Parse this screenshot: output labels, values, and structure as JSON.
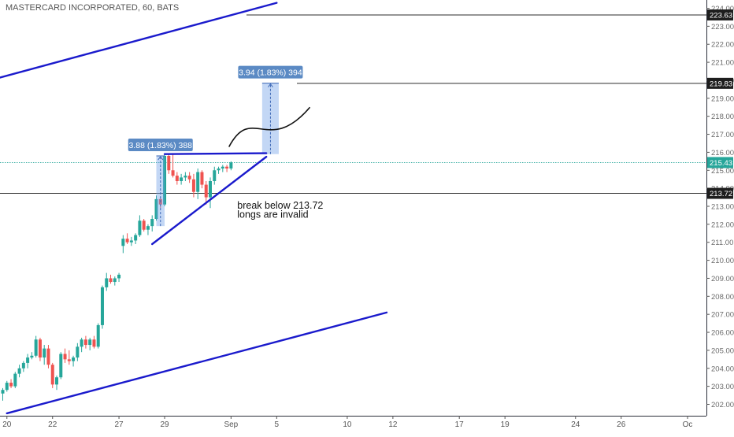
{
  "header": {
    "title": "MASTERCARD INCORPORATED, 60, BATS"
  },
  "chart_data": {
    "type": "candlestick",
    "symbol": "MASTERCARD INCORPORATED",
    "interval": "60",
    "exchange": "BATS",
    "y_axis": {
      "range": [
        201.6,
        224.3
      ],
      "ticks": [
        202,
        203,
        204,
        205,
        206,
        207,
        208,
        209,
        210,
        211,
        212,
        213,
        214,
        215,
        216,
        217,
        218,
        219,
        220,
        221,
        222,
        223,
        224
      ],
      "tick_labels": [
        "202.00",
        "203.00",
        "204.00",
        "205.00",
        "206.00",
        "207.00",
        "208.00",
        "209.00",
        "210.00",
        "211.00",
        "212.00",
        "213.00",
        "214.00",
        "215.00",
        "216.00",
        "217.00",
        "218.00",
        "219.00",
        "220.00",
        "221.00",
        "222.00",
        "223.00",
        "224.00"
      ]
    },
    "x_axis": {
      "ticks": [
        {
          "label": "20",
          "i": 1
        },
        {
          "label": "22",
          "i": 12
        },
        {
          "label": "27",
          "i": 28
        },
        {
          "label": "29",
          "i": 39
        },
        {
          "label": "Sep",
          "i": 55
        },
        {
          "label": "5",
          "i": 66
        },
        {
          "label": "10",
          "i": 83
        },
        {
          "label": "12",
          "i": 94
        },
        {
          "label": "17",
          "i": 110
        },
        {
          "label": "19",
          "i": 121
        },
        {
          "label": "24",
          "i": 138
        },
        {
          "label": "26",
          "i": 149
        },
        {
          "label": "Oc",
          "i": 165
        }
      ]
    },
    "colors": {
      "up": "#26a69a",
      "down": "#ef5350",
      "trendline": "#1a1acc",
      "price_tag": "#26a69a",
      "measure": "#5b8ac4"
    },
    "candles": [
      [
        202.6,
        202.9,
        202.2,
        202.8
      ],
      [
        202.8,
        203.3,
        202.7,
        203.2
      ],
      [
        203.2,
        203.4,
        202.9,
        203.0
      ],
      [
        203.0,
        203.8,
        202.9,
        203.7
      ],
      [
        203.7,
        204.2,
        203.5,
        204.0
      ],
      [
        204.0,
        204.4,
        203.8,
        204.3
      ],
      [
        204.3,
        204.8,
        204.0,
        204.6
      ],
      [
        204.6,
        204.9,
        204.5,
        204.7
      ],
      [
        204.7,
        205.8,
        204.6,
        205.6
      ],
      [
        205.6,
        205.7,
        204.4,
        204.6
      ],
      [
        204.6,
        205.3,
        204.2,
        205.1
      ],
      [
        205.1,
        205.3,
        204.0,
        204.2
      ],
      [
        204.2,
        204.3,
        202.9,
        203.1
      ],
      [
        203.1,
        203.6,
        202.8,
        203.5
      ],
      [
        203.5,
        204.9,
        203.4,
        204.8
      ],
      [
        204.8,
        205.1,
        204.3,
        204.5
      ],
      [
        204.5,
        205.0,
        204.2,
        204.4
      ],
      [
        204.4,
        204.7,
        204.1,
        204.6
      ],
      [
        204.6,
        205.4,
        204.4,
        205.2
      ],
      [
        205.2,
        205.7,
        204.9,
        205.6
      ],
      [
        205.6,
        205.8,
        205.1,
        205.3
      ],
      [
        205.3,
        205.7,
        205.0,
        205.6
      ],
      [
        205.6,
        205.8,
        205.1,
        205.2
      ],
      [
        205.2,
        206.5,
        205.1,
        206.4
      ],
      [
        206.4,
        208.6,
        206.2,
        208.5
      ],
      [
        208.5,
        209.3,
        208.3,
        209.0
      ],
      [
        209.0,
        209.2,
        208.7,
        208.8
      ],
      [
        208.8,
        209.1,
        208.6,
        209.0
      ],
      [
        209.0,
        209.3,
        208.8,
        209.2
      ],
      [
        210.8,
        211.4,
        210.4,
        211.2
      ],
      [
        211.2,
        211.5,
        210.9,
        211.0
      ],
      [
        211.0,
        211.3,
        210.8,
        211.1
      ],
      [
        211.1,
        211.5,
        210.9,
        211.4
      ],
      [
        211.4,
        212.5,
        211.3,
        212.2
      ],
      [
        212.2,
        212.3,
        211.6,
        211.7
      ],
      [
        211.7,
        212.0,
        211.4,
        211.9
      ],
      [
        211.9,
        212.5,
        211.6,
        212.3
      ],
      [
        212.3,
        213.6,
        212.2,
        213.4
      ],
      [
        213.4,
        213.5,
        212.9,
        213.1
      ],
      [
        213.1,
        215.9,
        213.0,
        215.8
      ],
      [
        215.8,
        215.9,
        214.8,
        215.0
      ],
      [
        215.0,
        215.9,
        214.6,
        214.7
      ],
      [
        214.7,
        214.9,
        214.2,
        214.4
      ],
      [
        214.4,
        214.8,
        214.2,
        214.6
      ],
      [
        214.6,
        214.9,
        214.4,
        214.7
      ],
      [
        214.7,
        214.9,
        214.3,
        214.5
      ],
      [
        214.5,
        214.8,
        213.5,
        213.8
      ],
      [
        213.8,
        215.1,
        213.4,
        214.9
      ],
      [
        214.9,
        215.0,
        214.0,
        214.2
      ],
      [
        214.2,
        214.4,
        213.1,
        213.5
      ],
      [
        213.5,
        214.6,
        212.9,
        214.4
      ],
      [
        214.4,
        215.2,
        214.2,
        215.0
      ],
      [
        215.0,
        215.2,
        214.8,
        215.1
      ],
      [
        215.1,
        215.3,
        214.9,
        215.2
      ],
      [
        215.2,
        215.3,
        214.9,
        215.1
      ],
      [
        215.1,
        215.5,
        215.0,
        215.43
      ]
    ],
    "price_tags": [
      {
        "value": 223.63,
        "label": "223.63",
        "style": "dark",
        "line": "solid"
      },
      {
        "value": 219.83,
        "label": "219.83",
        "style": "dark",
        "line": "solid"
      },
      {
        "value": 215.43,
        "label": "215.43",
        "style": "green",
        "line": "dotted"
      },
      {
        "value": 213.72,
        "label": "213.72",
        "style": "dark",
        "line": "solid"
      }
    ],
    "trendlines": [
      {
        "name": "upper-channel",
        "p1": {
          "i": -1.5,
          "v": 220.1
        },
        "p2": {
          "i": 66,
          "v": 224.3
        }
      },
      {
        "name": "lower-channel",
        "p1": {
          "i": 1,
          "v": 201.5
        },
        "p2": {
          "i": 92.5,
          "v": 207.1
        }
      },
      {
        "name": "wedge-top",
        "p1": {
          "i": 39,
          "v": 215.9
        },
        "p2": {
          "i": 63.5,
          "v": 215.95
        }
      },
      {
        "name": "wedge-bottom",
        "p1": {
          "i": 36,
          "v": 210.9
        },
        "p2": {
          "i": 63.5,
          "v": 215.75
        }
      }
    ],
    "measurements": [
      {
        "name": "pole-measure",
        "from": {
          "i": 37,
          "v": 211.9
        },
        "to": {
          "i": 39,
          "v": 215.8
        },
        "label": "3.88 (1.83%) 388"
      },
      {
        "name": "target-measure",
        "from": {
          "i": 62.5,
          "v": 215.9
        },
        "to": {
          "i": 66.5,
          "v": 219.84
        },
        "label": "3.94 (1.83%) 394"
      }
    ],
    "curve": {
      "points": [
        {
          "i": 54.5,
          "v": 216.3
        },
        {
          "i": 60,
          "v": 218.7
        },
        {
          "i": 64,
          "v": 215.8
        },
        {
          "i": 74,
          "v": 218.5
        }
      ]
    },
    "annotations": [
      {
        "text": "break below 213.72",
        "line": 1,
        "i": 56.5,
        "v": 213.0
      },
      {
        "text": "longs are invalid",
        "line": 2,
        "i": 56.5,
        "v": 212.5
      }
    ]
  }
}
